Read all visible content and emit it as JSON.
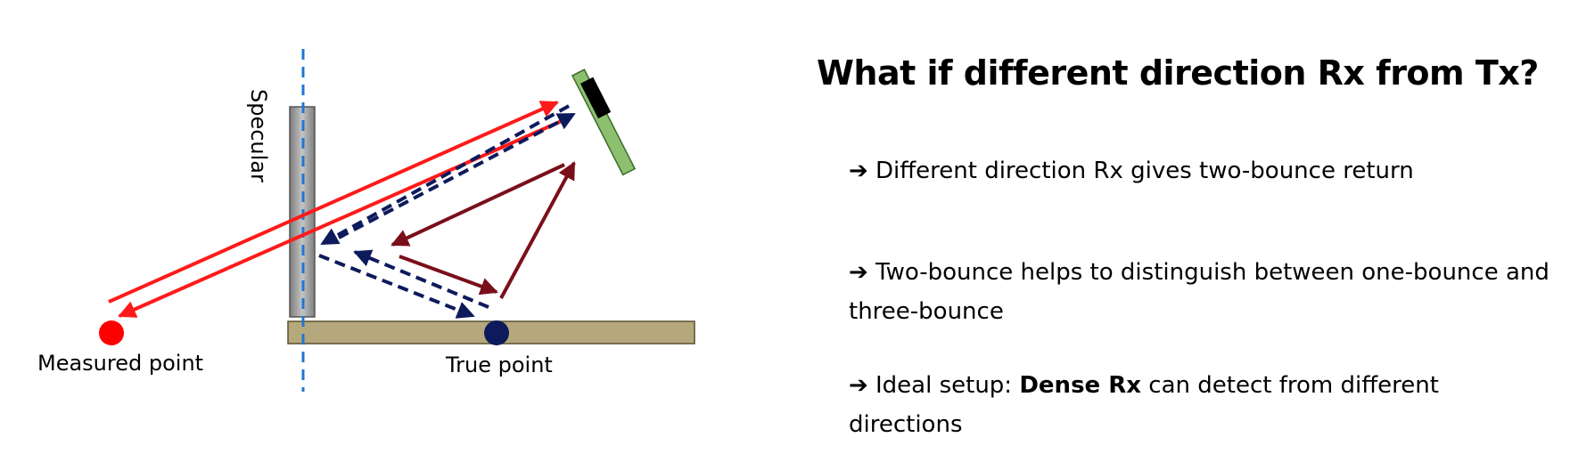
{
  "diagram": {
    "labels": {
      "specular": "Specular",
      "measured_point": "Measured point",
      "true_point": "True point"
    },
    "colors": {
      "direct_path": "#ff1a1a",
      "two_bounce_path": "#7a0f1a",
      "three_bounce_path": "#0d1a5c",
      "wall": "#9a9a9a",
      "floor": "#b5a87c",
      "rx_panel": "#8cc06e",
      "measured_point": "#ff0000",
      "true_point": "#0d1a5c",
      "axis_dash": "#1f77d0"
    }
  },
  "title": "What if different direction Rx from Tx?",
  "bullets": [
    {
      "arrow": "➔",
      "text": "Different direction Rx gives two-bounce return"
    },
    {
      "arrow": "➔",
      "text": "Two-bounce helps to distinguish between one-bounce and three-bounce"
    },
    {
      "arrow": "➔",
      "prefix": "Ideal setup: ",
      "bold": "Dense Rx",
      "suffix": " can detect from different directions"
    }
  ]
}
